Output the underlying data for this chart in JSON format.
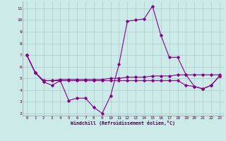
{
  "title": "",
  "xlabel": "Windchill (Refroidissement éolien,°C)",
  "background_color": "#cceae8",
  "grid_color": "#aacccc",
  "line_color": "#880088",
  "xlim": [
    -0.5,
    23.5
  ],
  "ylim": [
    1.8,
    11.6
  ],
  "yticks": [
    2,
    3,
    4,
    5,
    6,
    7,
    8,
    9,
    10,
    11
  ],
  "xticks": [
    0,
    1,
    2,
    3,
    4,
    5,
    6,
    7,
    8,
    9,
    10,
    11,
    12,
    13,
    14,
    15,
    16,
    17,
    18,
    19,
    20,
    21,
    22,
    23
  ],
  "series": [
    [
      7.0,
      5.5,
      4.7,
      4.4,
      4.8,
      3.1,
      3.3,
      3.3,
      2.5,
      2.0,
      3.5,
      6.2,
      9.9,
      10.0,
      10.1,
      11.2,
      8.7,
      6.8,
      6.8,
      5.3,
      4.3,
      4.1,
      4.4,
      5.2
    ],
    [
      7.0,
      5.5,
      4.8,
      4.8,
      4.9,
      4.9,
      4.9,
      4.9,
      4.9,
      4.9,
      5.0,
      5.0,
      5.1,
      5.1,
      5.1,
      5.2,
      5.2,
      5.2,
      5.3,
      5.3,
      5.3,
      5.3,
      5.3,
      5.3
    ],
    [
      7.0,
      5.5,
      4.8,
      4.8,
      4.8,
      4.8,
      4.8,
      4.8,
      4.8,
      4.8,
      4.8,
      4.8,
      4.8,
      4.8,
      4.8,
      4.8,
      4.8,
      4.8,
      4.8,
      4.4,
      4.3,
      4.1,
      4.4,
      5.2
    ]
  ],
  "figsize": [
    3.2,
    2.0
  ],
  "dpi": 100
}
